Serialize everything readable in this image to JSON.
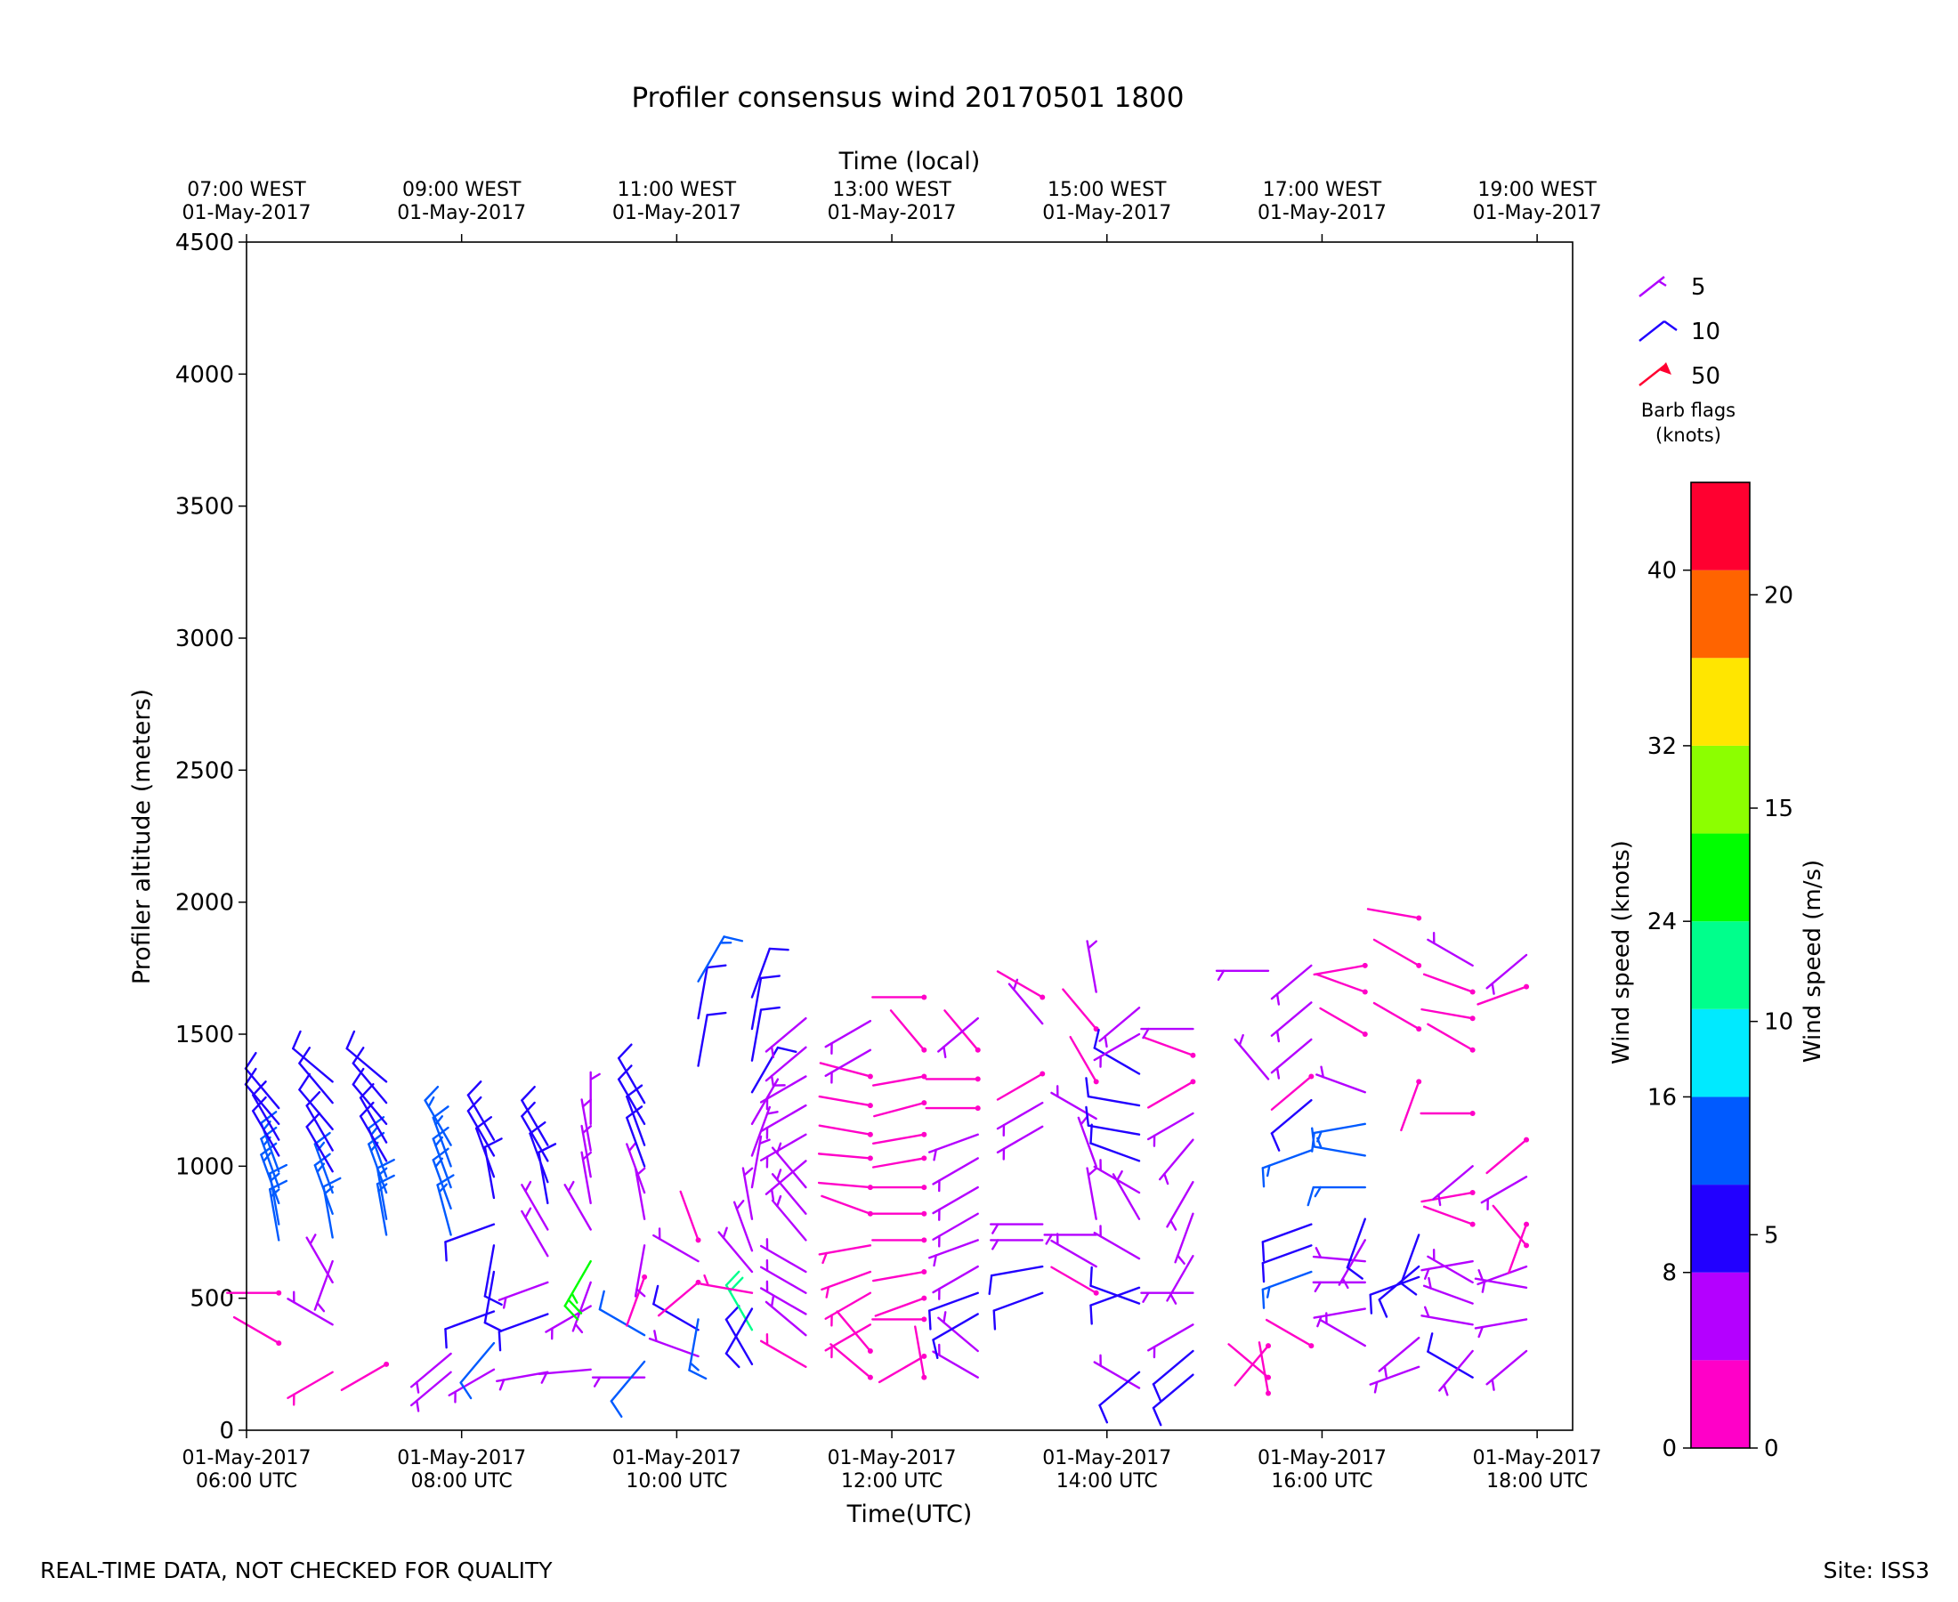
{
  "chart_data": {
    "type": "wind_barbs",
    "title": "Profiler consensus wind 20170501 1800",
    "xlabel": "Time(UTC)",
    "xlabel_top": "Time (local)",
    "ylabel": "Profiler altitude (meters)",
    "ylim": [
      0,
      4500
    ],
    "yticks": [
      0,
      500,
      1000,
      1500,
      2000,
      2500,
      3000,
      3500,
      4000,
      4500
    ],
    "xlim_hours": [
      6.0,
      18.33
    ],
    "x_ticks": [
      {
        "h": 6,
        "line1": "01-May-2017",
        "line2": "06:00 UTC"
      },
      {
        "h": 8,
        "line1": "01-May-2017",
        "line2": "08:00 UTC"
      },
      {
        "h": 10,
        "line1": "01-May-2017",
        "line2": "10:00 UTC"
      },
      {
        "h": 12,
        "line1": "01-May-2017",
        "line2": "12:00 UTC"
      },
      {
        "h": 14,
        "line1": "01-May-2017",
        "line2": "14:00 UTC"
      },
      {
        "h": 16,
        "line1": "01-May-2017",
        "line2": "16:00 UTC"
      },
      {
        "h": 18,
        "line1": "01-May-2017",
        "line2": "18:00 UTC"
      }
    ],
    "x_ticks_top": [
      {
        "h": 6,
        "line1": "07:00 WEST",
        "line2": "01-May-2017"
      },
      {
        "h": 8,
        "line1": "09:00 WEST",
        "line2": "01-May-2017"
      },
      {
        "h": 10,
        "line1": "11:00 WEST",
        "line2": "01-May-2017"
      },
      {
        "h": 12,
        "line1": "13:00 WEST",
        "line2": "01-May-2017"
      },
      {
        "h": 14,
        "line1": "15:00 WEST",
        "line2": "01-May-2017"
      },
      {
        "h": 16,
        "line1": "17:00 WEST",
        "line2": "01-May-2017"
      },
      {
        "h": 18,
        "line1": "19:00 WEST",
        "line2": "01-May-2017"
      }
    ],
    "barb_legend": {
      "items": [
        {
          "label": "5",
          "knots": 5,
          "color": "#b000ff"
        },
        {
          "label": "10",
          "knots": 10,
          "color": "#1f00ff"
        },
        {
          "label": "50",
          "knots": 50,
          "color": "#ff0030"
        }
      ],
      "caption_line1": "Barb flags",
      "caption_line2": "(knots)"
    },
    "colorbar": {
      "label_knots": "Wind speed (knots)",
      "label_ms": "Wind speed (m/s)",
      "knots_ticks": [
        0,
        8,
        16,
        24,
        32,
        40
      ],
      "ms_ticks": [
        0,
        5,
        10,
        15,
        20
      ],
      "max_knots": 44,
      "bins": [
        {
          "from": 0,
          "to": 4,
          "color": "#ff00c8"
        },
        {
          "from": 4,
          "to": 8,
          "color": "#b400ff"
        },
        {
          "from": 8,
          "to": 12,
          "color": "#2200ff"
        },
        {
          "from": 12,
          "to": 16,
          "color": "#005aff"
        },
        {
          "from": 16,
          "to": 20,
          "color": "#00eaff"
        },
        {
          "from": 20,
          "to": 24,
          "color": "#00ff8c"
        },
        {
          "from": 24,
          "to": 28,
          "color": "#00ff00"
        },
        {
          "from": 28,
          "to": 32,
          "color": "#8cff00"
        },
        {
          "from": 32,
          "to": 36,
          "color": "#ffe600"
        },
        {
          "from": 36,
          "to": 40,
          "color": "#ff6400"
        },
        {
          "from": 40,
          "to": 44,
          "color": "#ff0030"
        }
      ]
    },
    "columns": [
      {
        "h": 6.3,
        "heights": [
          330,
          520,
          720,
          780,
          860,
          920,
          980,
          1040,
          1100,
          1160,
          1220
        ],
        "speeds": [
          2,
          2,
          14,
          14,
          14,
          14,
          14,
          10,
          10,
          10,
          10
        ],
        "dirs": [
          300,
          270,
          350,
          350,
          340,
          340,
          340,
          330,
          330,
          320,
          320
        ]
      },
      {
        "h": 6.8,
        "heights": [
          220,
          400,
          560,
          640,
          730,
          820,
          900,
          980,
          1060,
          1140,
          1240,
          1320
        ],
        "speeds": [
          3,
          4,
          4,
          4,
          14,
          14,
          14,
          10,
          10,
          10,
          10,
          10
        ],
        "dirs": [
          240,
          300,
          330,
          200,
          350,
          340,
          340,
          330,
          330,
          320,
          320,
          310
        ]
      },
      {
        "h": 7.3,
        "heights": [
          250,
          740,
          800,
          900,
          960,
          1020,
          1090,
          1160,
          1240,
          1320
        ],
        "speeds": [
          2,
          14,
          14,
          14,
          14,
          10,
          10,
          10,
          10,
          10
        ],
        "dirs": [
          240,
          350,
          350,
          340,
          340,
          330,
          330,
          320,
          320,
          310
        ]
      },
      {
        "h": 7.9,
        "heights": [
          220,
          290,
          740,
          840,
          920,
          1000,
          1080
        ],
        "speeds": [
          4,
          4,
          14,
          14,
          14,
          14,
          14
        ],
        "dirs": [
          230,
          230,
          345,
          340,
          340,
          340,
          330
        ]
      },
      {
        "h": 8.3,
        "heights": [
          230,
          330,
          450,
          600,
          700,
          780,
          880,
          960,
          1040,
          1100
        ],
        "speeds": [
          4,
          12,
          10,
          10,
          10,
          10,
          10,
          10,
          10,
          10
        ],
        "dirs": [
          240,
          220,
          250,
          190,
          190,
          250,
          350,
          340,
          330,
          330
        ]
      },
      {
        "h": 8.8,
        "heights": [
          220,
          440,
          560,
          660,
          760,
          860,
          940,
          1020,
          1080
        ],
        "speeds": [
          4,
          10,
          4,
          4,
          4,
          10,
          10,
          10,
          10
        ],
        "dirs": [
          260,
          250,
          250,
          330,
          330,
          350,
          340,
          330,
          330
        ]
      },
      {
        "h": 9.2,
        "heights": [
          230,
          470,
          560,
          640,
          760,
          860,
          960,
          1060,
          1160
        ],
        "speeds": [
          4,
          4,
          4,
          24,
          4,
          4,
          4,
          4,
          4
        ],
        "dirs": [
          265,
          240,
          200,
          210,
          330,
          350,
          350,
          350,
          0
        ]
      },
      {
        "h": 9.7,
        "heights": [
          200,
          260,
          360,
          580,
          700,
          800,
          900,
          1000,
          1080,
          1160,
          1240
        ],
        "speeds": [
          4,
          12,
          12,
          2,
          4,
          4,
          4,
          10,
          10,
          10,
          10
        ],
        "dirs": [
          270,
          220,
          300,
          200,
          190,
          350,
          340,
          340,
          340,
          330,
          330
        ]
      },
      {
        "h": 10.2,
        "heights": [
          280,
          380,
          420,
          560,
          640,
          720,
          1380,
          1560,
          1700
        ],
        "speeds": [
          4,
          10,
          14,
          2,
          4,
          2,
          10,
          10,
          14
        ],
        "dirs": [
          290,
          300,
          190,
          230,
          300,
          340,
          10,
          10,
          30
        ]
      },
      {
        "h": 10.7,
        "heights": [
          250,
          380,
          460,
          520,
          600,
          680,
          800,
          920,
          1040,
          1160,
          1280,
          1400,
          1520,
          1640
        ],
        "speeds": [
          10,
          20,
          10,
          3,
          4,
          4,
          4,
          4,
          4,
          4,
          10,
          10,
          10,
          10
        ],
        "dirs": [
          330,
          330,
          210,
          280,
          320,
          340,
          350,
          10,
          20,
          30,
          30,
          10,
          10,
          20
        ]
      },
      {
        "h": 11.2,
        "heights": [
          240,
          360,
          440,
          520,
          600,
          720,
          820,
          920,
          1020,
          1120,
          1230,
          1340,
          1450,
          1560
        ],
        "speeds": [
          3,
          4,
          4,
          4,
          4,
          4,
          4,
          4,
          4,
          4,
          4,
          4,
          4,
          4
        ],
        "dirs": [
          300,
          310,
          300,
          300,
          300,
          320,
          320,
          320,
          230,
          240,
          240,
          240,
          230,
          230
        ]
      },
      {
        "h": 11.8,
        "heights": [
          200,
          300,
          400,
          520,
          600,
          700,
          820,
          920,
          1030,
          1120,
          1230,
          1340,
          1440,
          1550
        ],
        "speeds": [
          2,
          2,
          3,
          3,
          3,
          3,
          2,
          2,
          2,
          2,
          2,
          2,
          4,
          4
        ],
        "dirs": [
          310,
          320,
          240,
          240,
          250,
          260,
          290,
          275,
          275,
          280,
          280,
          285,
          240,
          240
        ]
      },
      {
        "h": 12.3,
        "heights": [
          200,
          280,
          420,
          500,
          600,
          720,
          820,
          920,
          1030,
          1120,
          1240,
          1340,
          1440,
          1640
        ],
        "speeds": [
          2,
          2,
          2,
          2,
          2,
          2,
          2,
          2,
          2,
          2,
          2,
          2,
          2,
          2
        ],
        "dirs": [
          350,
          240,
          270,
          250,
          260,
          270,
          270,
          270,
          260,
          260,
          255,
          260,
          320,
          270
        ]
      },
      {
        "h": 12.8,
        "heights": [
          200,
          300,
          440,
          520,
          620,
          720,
          820,
          920,
          1030,
          1120,
          1220,
          1330,
          1440,
          1560
        ],
        "speeds": [
          4,
          4,
          10,
          10,
          4,
          4,
          4,
          4,
          4,
          4,
          2,
          2,
          2,
          4
        ],
        "dirs": [
          300,
          310,
          240,
          250,
          240,
          250,
          240,
          240,
          240,
          250,
          270,
          270,
          320,
          230
        ]
      },
      {
        "h": 13.4,
        "heights": [
          520,
          620,
          720,
          780,
          1150,
          1240,
          1350,
          1540,
          1640
        ],
        "speeds": [
          10,
          10,
          4,
          4,
          4,
          4,
          2,
          4,
          2
        ],
        "dirs": [
          250,
          260,
          270,
          270,
          240,
          240,
          240,
          320,
          300
        ]
      },
      {
        "h": 13.9,
        "heights": [
          520,
          620,
          740,
          800,
          1000,
          1180,
          1320,
          1520,
          1660
        ],
        "speeds": [
          2,
          4,
          4,
          4,
          4,
          4,
          2,
          2,
          4
        ],
        "dirs": [
          300,
          300,
          270,
          350,
          340,
          300,
          330,
          320,
          350
        ]
      },
      {
        "h": 14.3,
        "heights": [
          160,
          220,
          480,
          540,
          650,
          800,
          900,
          1020,
          1120,
          1230,
          1350,
          1500,
          1600
        ],
        "speeds": [
          4,
          10,
          10,
          10,
          4,
          4,
          4,
          10,
          10,
          10,
          10,
          4,
          4
        ],
        "dirs": [
          300,
          230,
          290,
          250,
          300,
          330,
          300,
          290,
          280,
          280,
          300,
          240,
          230
        ]
      },
      {
        "h": 14.8,
        "heights": [
          210,
          300,
          400,
          520,
          660,
          820,
          940,
          1100,
          1200,
          1320,
          1420,
          1520
        ],
        "speeds": [
          10,
          10,
          4,
          4,
          4,
          4,
          4,
          4,
          4,
          2,
          2,
          4
        ],
        "dirs": [
          230,
          230,
          240,
          270,
          210,
          200,
          210,
          220,
          240,
          240,
          290,
          270
        ]
      },
      {
        "h": 15.5,
        "heights": [
          140,
          200,
          320,
          1330,
          1740
        ],
        "speeds": [
          2,
          2,
          2,
          4,
          4
        ],
        "dirs": [
          350,
          310,
          220,
          320,
          270
        ]
      },
      {
        "h": 15.9,
        "heights": [
          320,
          600,
          700,
          780,
          1060,
          1250,
          1340,
          1480,
          1620,
          1760
        ],
        "speeds": [
          2,
          14,
          10,
          10,
          14,
          10,
          2,
          4,
          4,
          4
        ],
        "dirs": [
          300,
          250,
          250,
          250,
          250,
          230,
          230,
          230,
          230,
          230
        ]
      },
      {
        "h": 16.4,
        "heights": [
          320,
          460,
          560,
          640,
          720,
          800,
          920,
          1040,
          1160,
          1280,
          1500,
          1660,
          1760
        ],
        "speeds": [
          4,
          4,
          4,
          4,
          4,
          10,
          14,
          14,
          14,
          4,
          2,
          2,
          2
        ],
        "dirs": [
          300,
          260,
          270,
          275,
          210,
          200,
          270,
          280,
          260,
          290,
          300,
          290,
          260
        ]
      },
      {
        "h": 16.9,
        "heights": [
          240,
          350,
          580,
          620,
          740,
          1320,
          1520,
          1760,
          1940
        ],
        "speeds": [
          4,
          4,
          10,
          10,
          10,
          2,
          2,
          2,
          2
        ],
        "dirs": [
          250,
          230,
          250,
          230,
          200,
          200,
          300,
          300,
          280
        ]
      },
      {
        "h": 17.4,
        "heights": [
          200,
          300,
          400,
          480,
          560,
          640,
          780,
          900,
          1000,
          1200,
          1440,
          1560,
          1660,
          1760
        ],
        "speeds": [
          10,
          4,
          4,
          4,
          4,
          4,
          2,
          2,
          4,
          2,
          2,
          2,
          2,
          4
        ],
        "dirs": [
          300,
          220,
          280,
          290,
          300,
          260,
          290,
          260,
          230,
          270,
          300,
          280,
          290,
          300
        ]
      },
      {
        "h": 17.9,
        "heights": [
          300,
          420,
          540,
          620,
          700,
          780,
          960,
          1100,
          1680,
          1800
        ],
        "speeds": [
          4,
          4,
          4,
          4,
          2,
          2,
          4,
          2,
          2,
          4
        ],
        "dirs": [
          230,
          260,
          280,
          250,
          320,
          200,
          240,
          230,
          250,
          230
        ]
      }
    ],
    "footer_left": "REAL-TIME DATA, NOT CHECKED FOR QUALITY",
    "footer_right": "Site: ISS3"
  }
}
